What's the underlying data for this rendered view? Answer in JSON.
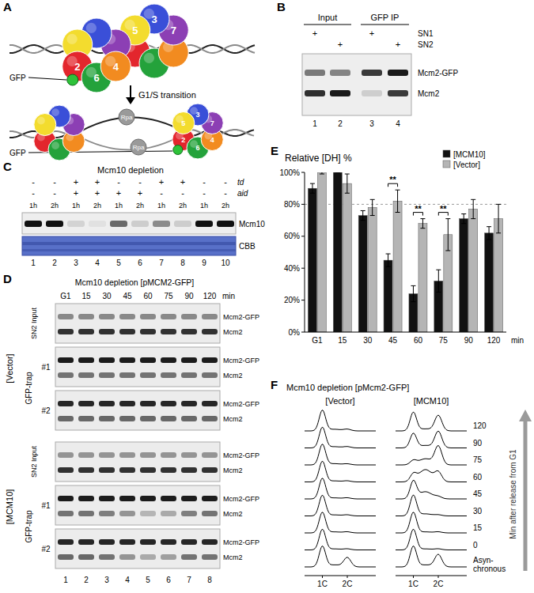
{
  "panel_labels": [
    "A",
    "B",
    "C",
    "D",
    "E",
    "F"
  ],
  "panel_a": {
    "subunits": [
      {
        "label": "2",
        "color": "#e3262d"
      },
      {
        "label": "6",
        "color": "#24a23b"
      },
      {
        "label": "4",
        "color": "#f28b20"
      },
      {
        "label": "7",
        "color": "#8c3fb4"
      },
      {
        "label": "3",
        "color": "#3a4fd8"
      },
      {
        "label": "5",
        "color": "#f3dc2e"
      }
    ],
    "tag": "GFP",
    "transition": "G1/S transition",
    "rpa": "Rpa"
  },
  "panel_b": {
    "groups": [
      {
        "label": "Input",
        "lanes": [
          "1",
          "2"
        ]
      },
      {
        "label": "GFP IP",
        "lanes": [
          "3",
          "4"
        ]
      }
    ],
    "rows": [
      {
        "label": "SN1",
        "marks": [
          "+",
          null,
          "+",
          null
        ]
      },
      {
        "label": "SN2",
        "marks": [
          null,
          "+",
          null,
          "+"
        ]
      }
    ],
    "bands": [
      {
        "label": "Mcm2-GFP",
        "intensity": [
          0.55,
          0.5,
          0.85,
          1
        ]
      },
      {
        "label": "Mcm2",
        "intensity": [
          0.9,
          1,
          0.15,
          0.85
        ]
      }
    ]
  },
  "panel_c": {
    "title": "Mcm10 depletion",
    "rows": [
      {
        "label": "td",
        "marks": [
          "-",
          "-",
          "+",
          "+",
          "-",
          "-",
          "+",
          "+",
          "-",
          "-"
        ]
      },
      {
        "label": "aid",
        "marks": [
          "-",
          "-",
          "+",
          "+",
          "+",
          "+",
          "-",
          "-",
          "-",
          "-"
        ]
      }
    ],
    "times": [
      "1h",
      "2h",
      "1h",
      "2h",
      "1h",
      "2h",
      "1h",
      "2h",
      "1h",
      "2h"
    ],
    "band": {
      "label": "Mcm10",
      "intensity": [
        1,
        1,
        0.12,
        0.06,
        0.6,
        0.15,
        0.45,
        0.15,
        1,
        1
      ]
    },
    "stain": "CBB",
    "lanes": [
      "1",
      "2",
      "3",
      "4",
      "5",
      "6",
      "7",
      "8",
      "9",
      "10"
    ]
  },
  "panel_d": {
    "title": "Mcm10 depletion [pMCM2-GFP]",
    "times": [
      "G1",
      "15",
      "30",
      "45",
      "60",
      "75",
      "90",
      "120"
    ],
    "time_unit": "min",
    "lanes": [
      "1",
      "2",
      "3",
      "4",
      "5",
      "6",
      "7",
      "8"
    ],
    "band_labels": [
      "Mcm2-GFP",
      "Mcm2"
    ],
    "trap_label": "GFP-trap",
    "groups": [
      {
        "label": "[Vector]",
        "blots": [
          {
            "label": "SN2 Input",
            "mcm2_gfp": [
              0.45,
              0.45,
              0.45,
              0.45,
              0.45,
              0.45,
              0.45,
              0.45
            ],
            "mcm2": [
              0.85,
              0.85,
              0.85,
              0.85,
              0.85,
              0.85,
              0.85,
              0.85
            ]
          },
          {
            "label": "#1",
            "mcm2_gfp": [
              0.95,
              0.95,
              0.95,
              0.95,
              0.95,
              0.95,
              0.95,
              0.95
            ],
            "mcm2": [
              0.55,
              0.55,
              0.55,
              0.55,
              0.55,
              0.55,
              0.55,
              0.55
            ]
          },
          {
            "label": "#2",
            "mcm2_gfp": [
              0.9,
              0.9,
              0.9,
              0.9,
              0.9,
              0.9,
              0.9,
              0.9
            ],
            "mcm2": [
              0.6,
              0.6,
              0.6,
              0.6,
              0.6,
              0.6,
              0.6,
              0.6
            ]
          }
        ]
      },
      {
        "label": "[MCM10]",
        "blots": [
          {
            "label": "SN2 Input",
            "mcm2_gfp": [
              0.4,
              0.4,
              0.4,
              0.4,
              0.4,
              0.4,
              0.4,
              0.4
            ],
            "mcm2": [
              0.85,
              0.85,
              0.85,
              0.85,
              0.85,
              0.85,
              0.85,
              0.85
            ]
          },
          {
            "label": "#1",
            "mcm2_gfp": [
              0.95,
              0.95,
              0.95,
              0.95,
              0.95,
              0.95,
              0.95,
              0.95
            ],
            "mcm2": [
              0.55,
              0.55,
              0.5,
              0.4,
              0.25,
              0.3,
              0.5,
              0.55
            ]
          },
          {
            "label": "#2",
            "mcm2_gfp": [
              0.9,
              0.9,
              0.9,
              0.9,
              0.9,
              0.9,
              0.9,
              0.9
            ],
            "mcm2": [
              0.6,
              0.6,
              0.55,
              0.4,
              0.3,
              0.35,
              0.55,
              0.55
            ]
          }
        ]
      }
    ]
  },
  "chart_data": {
    "type": "bar",
    "title": "Relative [DH] %",
    "categories": [
      "G1",
      "15",
      "30",
      "45",
      "60",
      "75",
      "90",
      "120"
    ],
    "x_label": "min",
    "series": [
      {
        "name": "[MCM10]",
        "color": "#111111",
        "values": [
          90,
          100,
          73,
          45,
          24,
          32,
          71,
          62
        ],
        "errors": [
          3,
          0,
          3,
          4,
          5,
          7,
          3,
          4
        ]
      },
      {
        "name": "[Vector]",
        "color": "#b5b5b5",
        "values": [
          100,
          93,
          78,
          82,
          68,
          61,
          77,
          71
        ],
        "errors": [
          1,
          6,
          5,
          7,
          3,
          10,
          6,
          9
        ]
      }
    ],
    "ylim": [
      0,
      100
    ],
    "yticks": [
      {
        "value": 0,
        "label": "0%"
      },
      {
        "value": 20,
        "label": "20%"
      },
      {
        "value": 40,
        "label": "40%"
      },
      {
        "value": 60,
        "label": "60%"
      },
      {
        "value": 80,
        "label": "80%"
      },
      {
        "value": 100,
        "label": "100%"
      }
    ],
    "grid": false,
    "legend": "top-right",
    "reference_line": 80,
    "significance": [
      {
        "category": "45",
        "label": "**"
      },
      {
        "category": "60",
        "label": "**"
      },
      {
        "category": "75",
        "label": "**"
      }
    ]
  },
  "panel_f": {
    "title": "Mcm10 depletion [pMcm2-GFP]",
    "row_labels": [
      "120",
      "90",
      "75",
      "60",
      "45",
      "30",
      "15",
      "0",
      "Asyn-chronous"
    ],
    "columns": [
      {
        "label": "[Vector]",
        "profiles": [
          [
            1,
            0.08,
            0.08
          ],
          [
            1,
            0.06,
            0.06
          ],
          [
            1,
            0.06,
            0.05
          ],
          [
            1,
            0.05,
            0.05
          ],
          [
            1,
            0.05,
            0.05
          ],
          [
            1,
            0.05,
            0.05
          ],
          [
            1,
            0.05,
            0.05
          ],
          [
            1,
            0.05,
            0.05
          ],
          [
            1,
            0.1,
            0.45
          ]
        ]
      },
      {
        "label": "[MCM10]",
        "profiles": [
          [
            0.9,
            0.1,
            0.75
          ],
          [
            0.7,
            0.12,
            0.8
          ],
          [
            0.2,
            0.3,
            0.9
          ],
          [
            0.35,
            0.6,
            0.45
          ],
          [
            0.85,
            0.35,
            0.1
          ],
          [
            1,
            0.1,
            0.05
          ],
          [
            1,
            0.05,
            0.05
          ],
          [
            1,
            0.05,
            0.05
          ],
          [
            1,
            0.1,
            0.6
          ]
        ]
      }
    ],
    "axis_labels": [
      "1C",
      "2C"
    ],
    "arrow_label": "Min after release from G1"
  }
}
